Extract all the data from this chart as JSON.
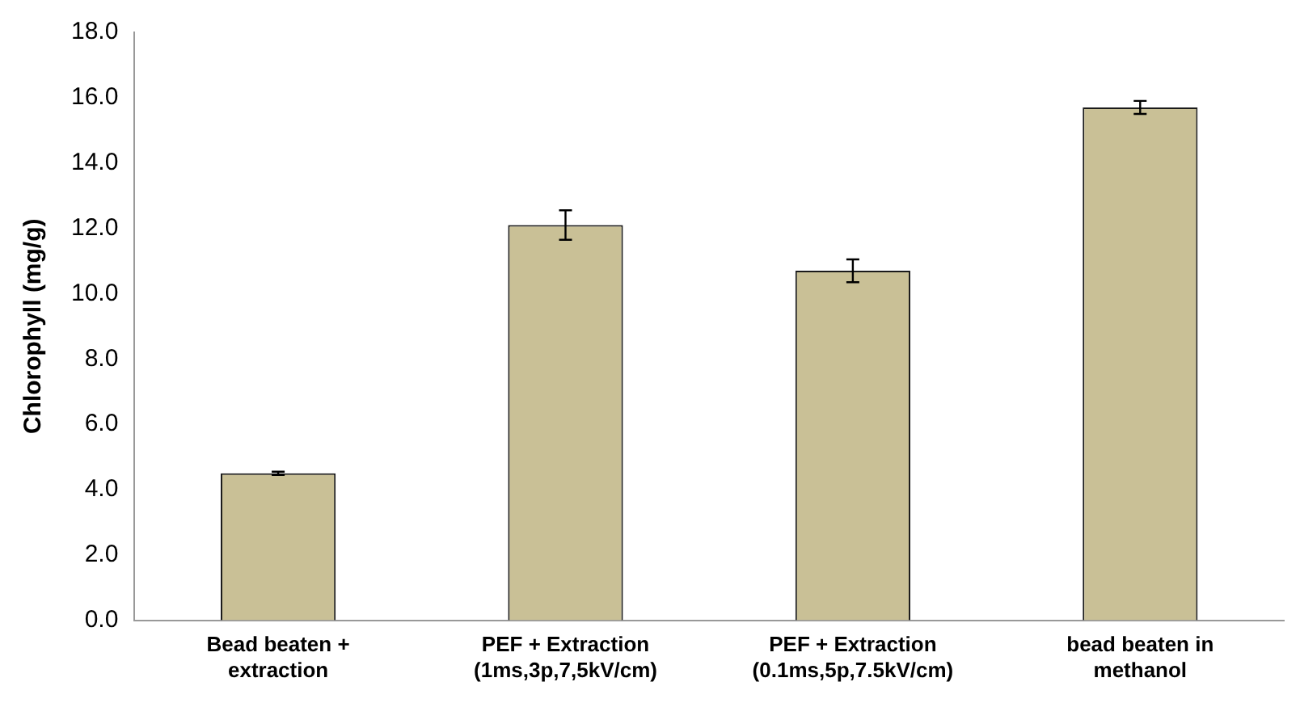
{
  "chart_data": {
    "type": "bar",
    "ylabel": "Chlorophyll (mg/g)",
    "categories": [
      "Bead beaten + extraction",
      "PEF + Extraction (1ms,3p,7,5kV/cm)",
      "PEF + Extraction (0.1ms,5p,7.5kV/cm)",
      "bead beaten in methanol"
    ],
    "values": [
      4.5,
      12.1,
      10.7,
      15.7
    ],
    "errors": [
      0.05,
      0.45,
      0.35,
      0.2
    ],
    "color": "#c9c096",
    "ylim": [
      0,
      18
    ],
    "yticks": [
      {
        "value": 0,
        "label": "0.0"
      },
      {
        "value": 2,
        "label": "2.0"
      },
      {
        "value": 4,
        "label": "4.0"
      },
      {
        "value": 6,
        "label": "6.0"
      },
      {
        "value": 8,
        "label": "8.0"
      },
      {
        "value": 10,
        "label": "10.0"
      },
      {
        "value": 12,
        "label": "12.0"
      },
      {
        "value": 14,
        "label": "14.0"
      },
      {
        "value": 16,
        "label": "16.0"
      },
      {
        "value": 18,
        "label": "18.0"
      }
    ],
    "grid": false,
    "legend": false
  }
}
